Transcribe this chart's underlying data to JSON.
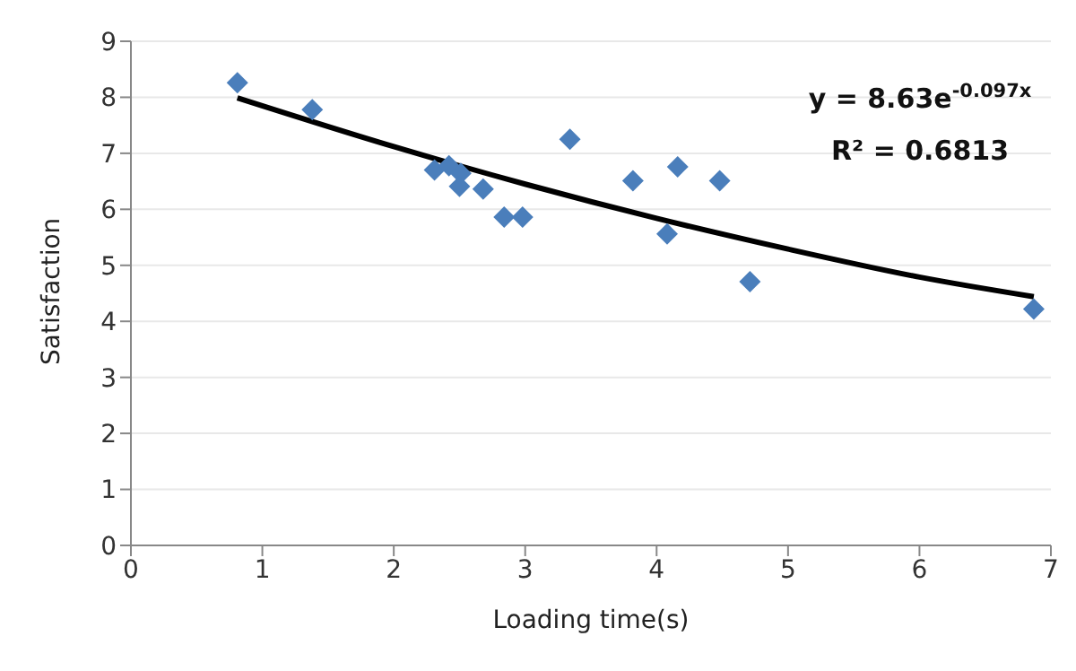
{
  "chart_data": {
    "type": "scatter",
    "xlabel": "Loading time(s)",
    "ylabel": "Satisfaction",
    "xlim": [
      0,
      7
    ],
    "xticks": [
      0,
      1,
      2,
      3,
      4,
      5,
      6,
      7
    ],
    "ylim": [
      0,
      9
    ],
    "yticks": [
      0,
      1,
      2,
      3,
      4,
      5,
      6,
      7,
      8,
      9
    ],
    "grid": "y",
    "marker": "diamond",
    "series": [
      {
        "color": "#4a7ebb",
        "x": [
          0.81,
          1.38,
          2.31,
          2.42,
          2.51,
          2.5,
          2.68,
          2.84,
          2.98,
          3.34,
          3.82,
          4.16,
          4.48,
          4.08,
          4.71,
          6.87
        ],
        "values": [
          8.26,
          7.78,
          6.7,
          6.78,
          6.64,
          6.41,
          6.36,
          5.86,
          5.86,
          7.25,
          6.51,
          6.76,
          6.51,
          5.56,
          4.71,
          4.22
        ]
      },
      {
        "type": "line",
        "color": "#000000",
        "marker": "none",
        "line_style": "solid",
        "x": [
          0.81,
          2,
          3,
          4,
          5,
          6,
          6.87
        ],
        "values": [
          7.99,
          7.12,
          6.45,
          5.84,
          5.29,
          4.79,
          4.44
        ]
      }
    ],
    "annotations": [
      "y = 8.63e$^{-0.097x}$",
      "R² = 0.6813"
    ]
  }
}
